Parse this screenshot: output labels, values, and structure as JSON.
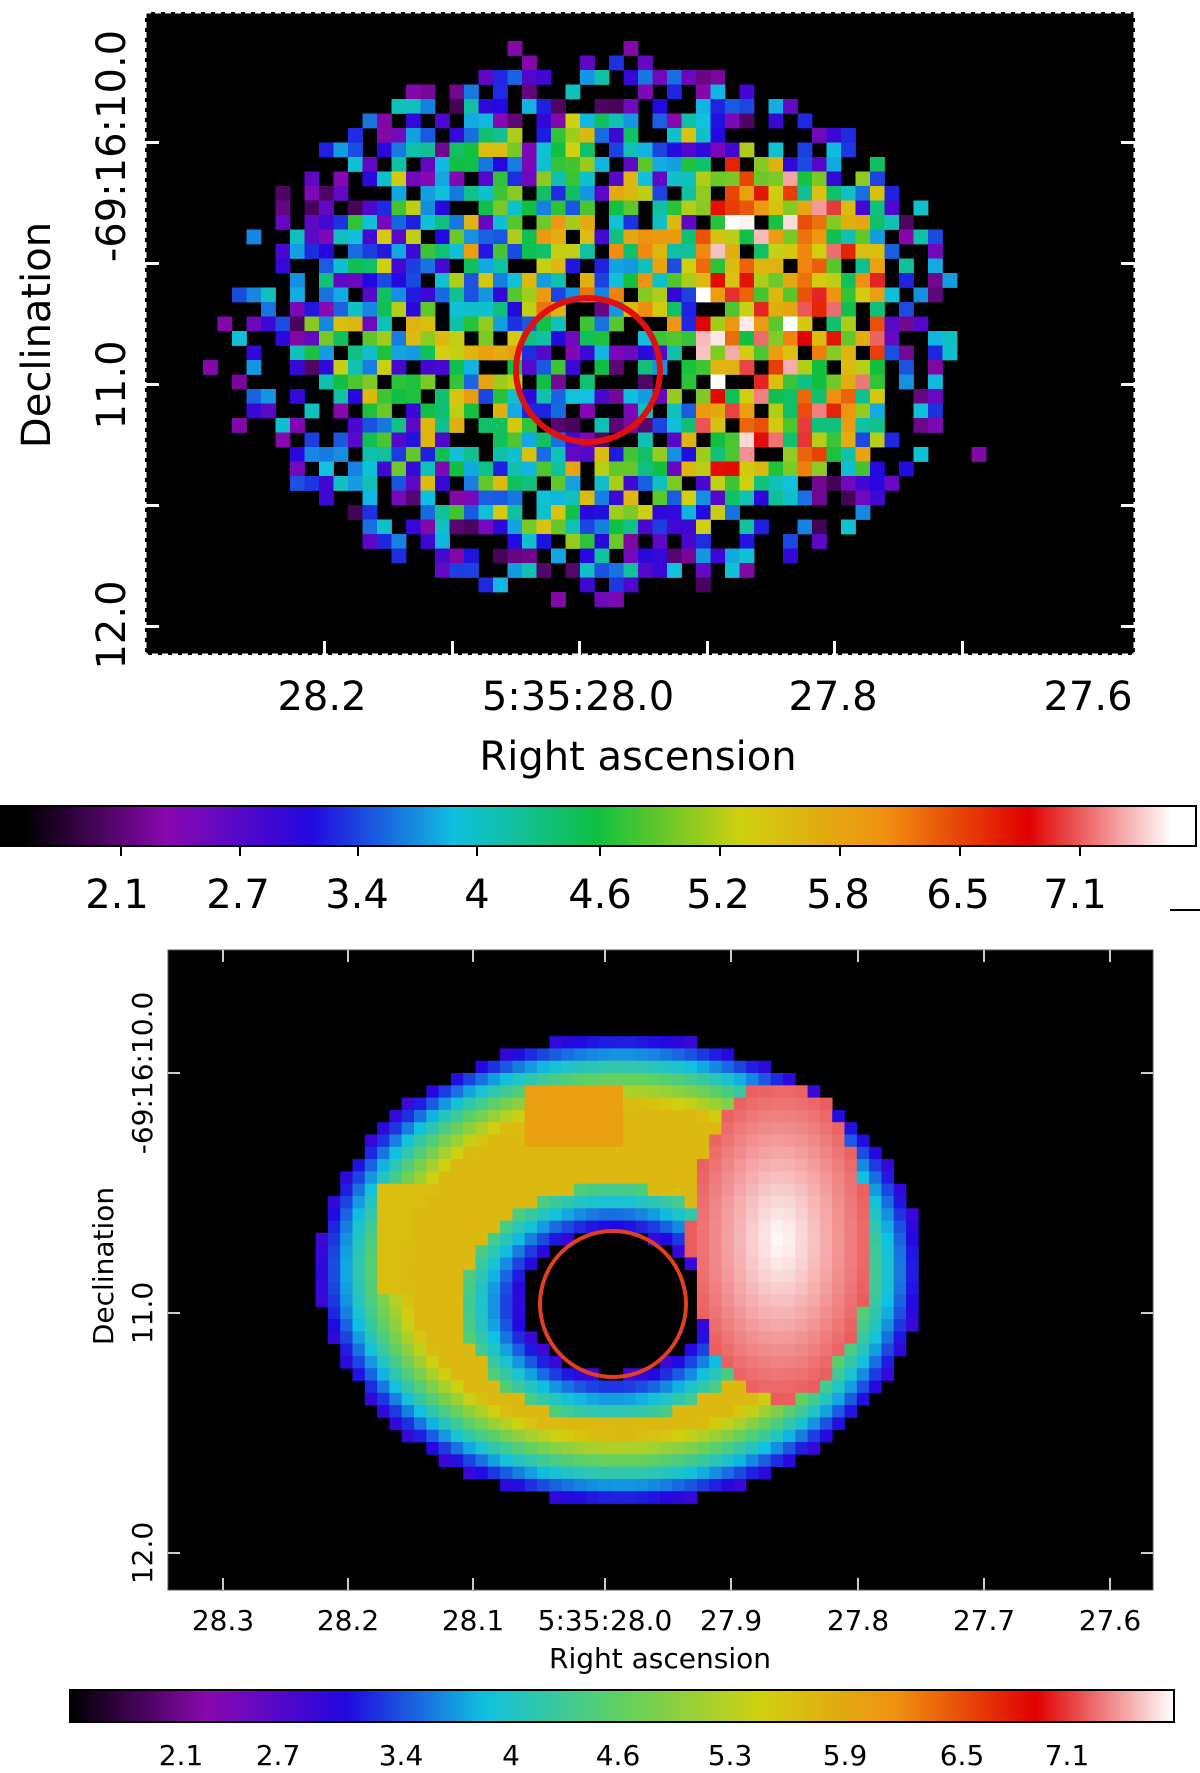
{
  "chart_data": [
    {
      "type": "heatmap",
      "panel": "top",
      "xlabel": "Right ascension",
      "ylabel": "Declination",
      "x_ticks": [
        "28.2",
        "5:35:28.0",
        "27.8",
        "27.6"
      ],
      "y_ticks": [
        "-69:16:10.0",
        "11.0",
        "12.0"
      ],
      "markers": [
        {
          "shape": "circle",
          "color": "#e01010"
        }
      ],
      "colorbar": {
        "ticks": [
          "2.1",
          "2.7",
          "3.4",
          "4",
          "4.6",
          "5.2",
          "5.8",
          "6.5",
          "7.1"
        ],
        "colormap": [
          "#000000",
          "#8a08b0",
          "#2208e0",
          "#10c0e0",
          "#10c040",
          "#d0d010",
          "#f09010",
          "#e00000",
          "#ffffff"
        ]
      }
    },
    {
      "type": "heatmap",
      "panel": "bottom",
      "xlabel": "Right ascension",
      "ylabel": "Declination",
      "x_ticks": [
        "28.3",
        "28.2",
        "28.1",
        "5:35:28.0",
        "27.9",
        "27.8",
        "27.7",
        "27.6"
      ],
      "y_ticks": [
        "-69:16:10.0",
        "11.0",
        "12.0"
      ],
      "markers": [
        {
          "shape": "circle",
          "color": "#e04020"
        }
      ],
      "colorbar": {
        "ticks": [
          "2.1",
          "2.7",
          "3.4",
          "4",
          "4.6",
          "5.3",
          "5.9",
          "6.5",
          "7.1"
        ],
        "colormap": [
          "#000000",
          "#8a08b0",
          "#2208e0",
          "#10c0e0",
          "#60d060",
          "#d0d010",
          "#f09010",
          "#e00000",
          "#ffffff"
        ]
      }
    }
  ]
}
